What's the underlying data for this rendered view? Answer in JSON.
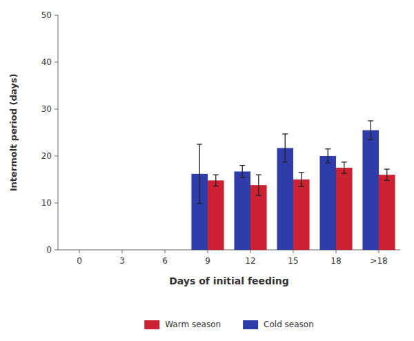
{
  "chart_data": {
    "type": "bar",
    "categories": [
      "0",
      "3",
      "6",
      "9",
      "12",
      "15",
      "18",
      ">18"
    ],
    "series": [
      {
        "name": "Cold season",
        "color": "#2E3DAA",
        "values": [
          null,
          null,
          null,
          16.2,
          16.7,
          21.7,
          20.0,
          25.5
        ],
        "errors": [
          null,
          null,
          null,
          6.3,
          1.3,
          3.0,
          1.5,
          2.0
        ]
      },
      {
        "name": "Warm season",
        "color": "#CC2233",
        "values": [
          null,
          null,
          null,
          14.8,
          13.8,
          15.0,
          17.5,
          16.0
        ],
        "errors": [
          null,
          null,
          null,
          1.2,
          2.2,
          1.5,
          1.2,
          1.2
        ]
      }
    ],
    "x_label": "Days of initial feeding",
    "y_label": "Intermolt period (days)",
    "ylim": [
      0,
      50
    ],
    "yticks": [
      0,
      10,
      20,
      30,
      40,
      50
    ],
    "grid": false,
    "legend": "bottom"
  }
}
